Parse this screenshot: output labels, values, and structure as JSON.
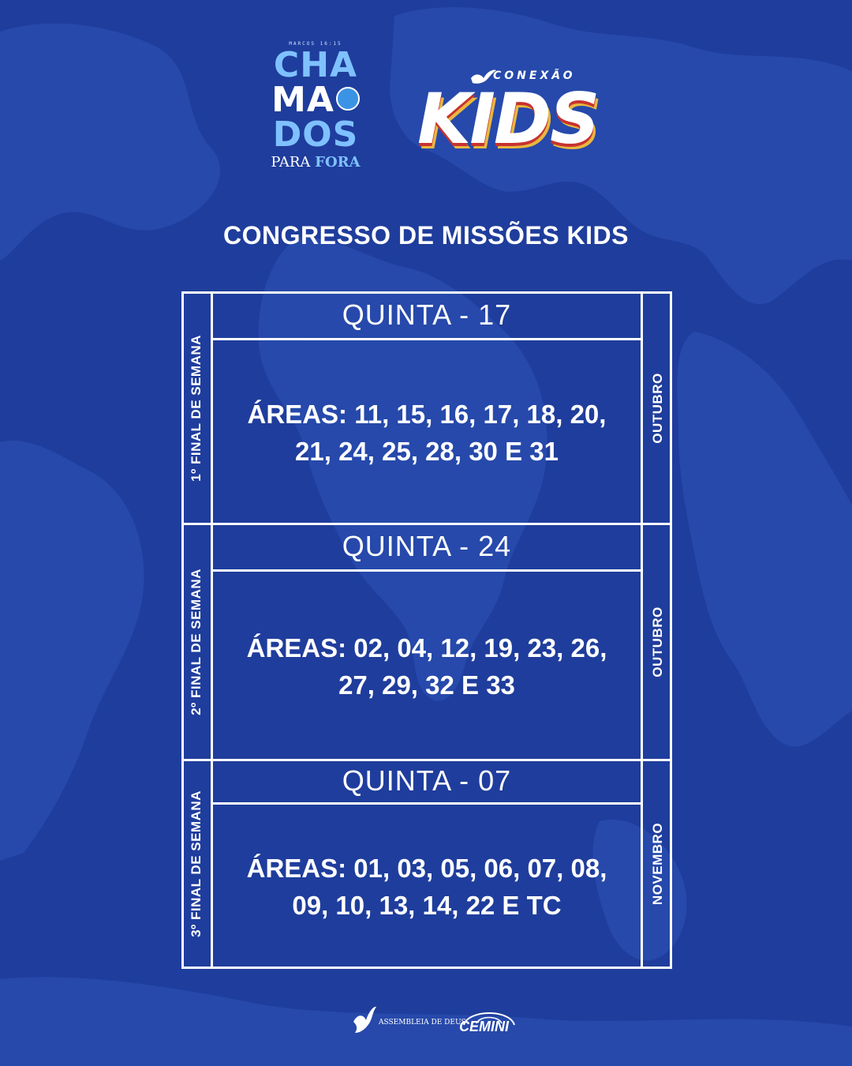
{
  "header": {
    "chamados_logo": {
      "subtitle": "MARCOS 16:15",
      "line1": "CHA",
      "line2": "MA",
      "line3": "DOS",
      "para": "PARA",
      "fora": "FORA"
    },
    "kids_logo": {
      "conexao": "CONEXÃO",
      "kids": "KIDS"
    }
  },
  "title": "CONGRESSO DE MISSÕES KIDS",
  "schedule": [
    {
      "week_label": "1º FINAL DE SEMANA",
      "day": "QUINTA - 17",
      "areas": "ÁREAS: 11, 15, 16, 17, 18, 20, 21, 24, 25, 28, 30 E 31",
      "month": "OUTUBRO"
    },
    {
      "week_label": "2º FINAL DE SEMANA",
      "day": "QUINTA - 24",
      "areas": "ÁREAS: 02, 04, 12, 19, 23, 26, 27, 29, 32 E 33",
      "month": "OUTUBRO"
    },
    {
      "week_label": "3º FINAL DE SEMANA",
      "day": "QUINTA - 07",
      "areas": "ÁREAS: 01, 03, 05, 06, 07, 08, 09, 10, 13, 14, 22 E TC",
      "month": "NOVEMBRO"
    }
  ],
  "footer": {
    "assembleia": "ASSEMBLEIA DE DEUS",
    "cemini": "CEMINI"
  },
  "colors": {
    "background": "#1f3d9c",
    "map": "#2a4db0",
    "accent_light_blue": "#7fc1ff",
    "kids_red": "#c7332f",
    "kids_yellow": "#e9b73e",
    "text": "#ffffff"
  }
}
